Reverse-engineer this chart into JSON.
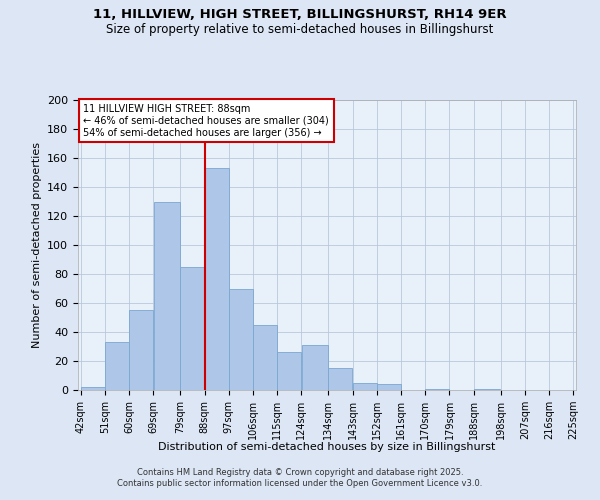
{
  "title": "11, HILLVIEW, HIGH STREET, BILLINGSHURST, RH14 9ER",
  "subtitle": "Size of property relative to semi-detached houses in Billingshurst",
  "xlabel": "Distribution of semi-detached houses by size in Billingshurst",
  "ylabel": "Number of semi-detached properties",
  "annotation_title": "11 HILLVIEW HIGH STREET: 88sqm",
  "annotation_line1": "← 46% of semi-detached houses are smaller (304)",
  "annotation_line2": "54% of semi-detached houses are larger (356) →",
  "footer_line1": "Contains HM Land Registry data © Crown copyright and database right 2025.",
  "footer_line2": "Contains public sector information licensed under the Open Government Licence v3.0.",
  "property_size": 88,
  "bin_edges": [
    42,
    51,
    60,
    69,
    79,
    88,
    97,
    106,
    115,
    124,
    134,
    143,
    152,
    161,
    170,
    179,
    188,
    198,
    207,
    216,
    225
  ],
  "bin_labels": [
    "42sqm",
    "51sqm",
    "60sqm",
    "69sqm",
    "79sqm",
    "88sqm",
    "97sqm",
    "106sqm",
    "115sqm",
    "124sqm",
    "134sqm",
    "143sqm",
    "152sqm",
    "161sqm",
    "170sqm",
    "179sqm",
    "188sqm",
    "198sqm",
    "207sqm",
    "216sqm",
    "225sqm"
  ],
  "bar_values": [
    2,
    33,
    55,
    130,
    85,
    153,
    70,
    45,
    26,
    31,
    15,
    5,
    4,
    0,
    1,
    0,
    1,
    0,
    0,
    0
  ],
  "bar_color": "#aec6e8",
  "bar_edge_color": "#7ba7d0",
  "vline_color": "#cc0000",
  "vline_x": 88,
  "annotation_box_edge": "#cc0000",
  "bg_color": "#dce6f5",
  "plot_bg_color": "#e8f0fa",
  "grid_color": "#b8c8dc",
  "ylim": [
    0,
    200
  ],
  "yticks": [
    0,
    20,
    40,
    60,
    80,
    100,
    120,
    140,
    160,
    180,
    200
  ],
  "title_fontsize": 9.5,
  "subtitle_fontsize": 8.5
}
